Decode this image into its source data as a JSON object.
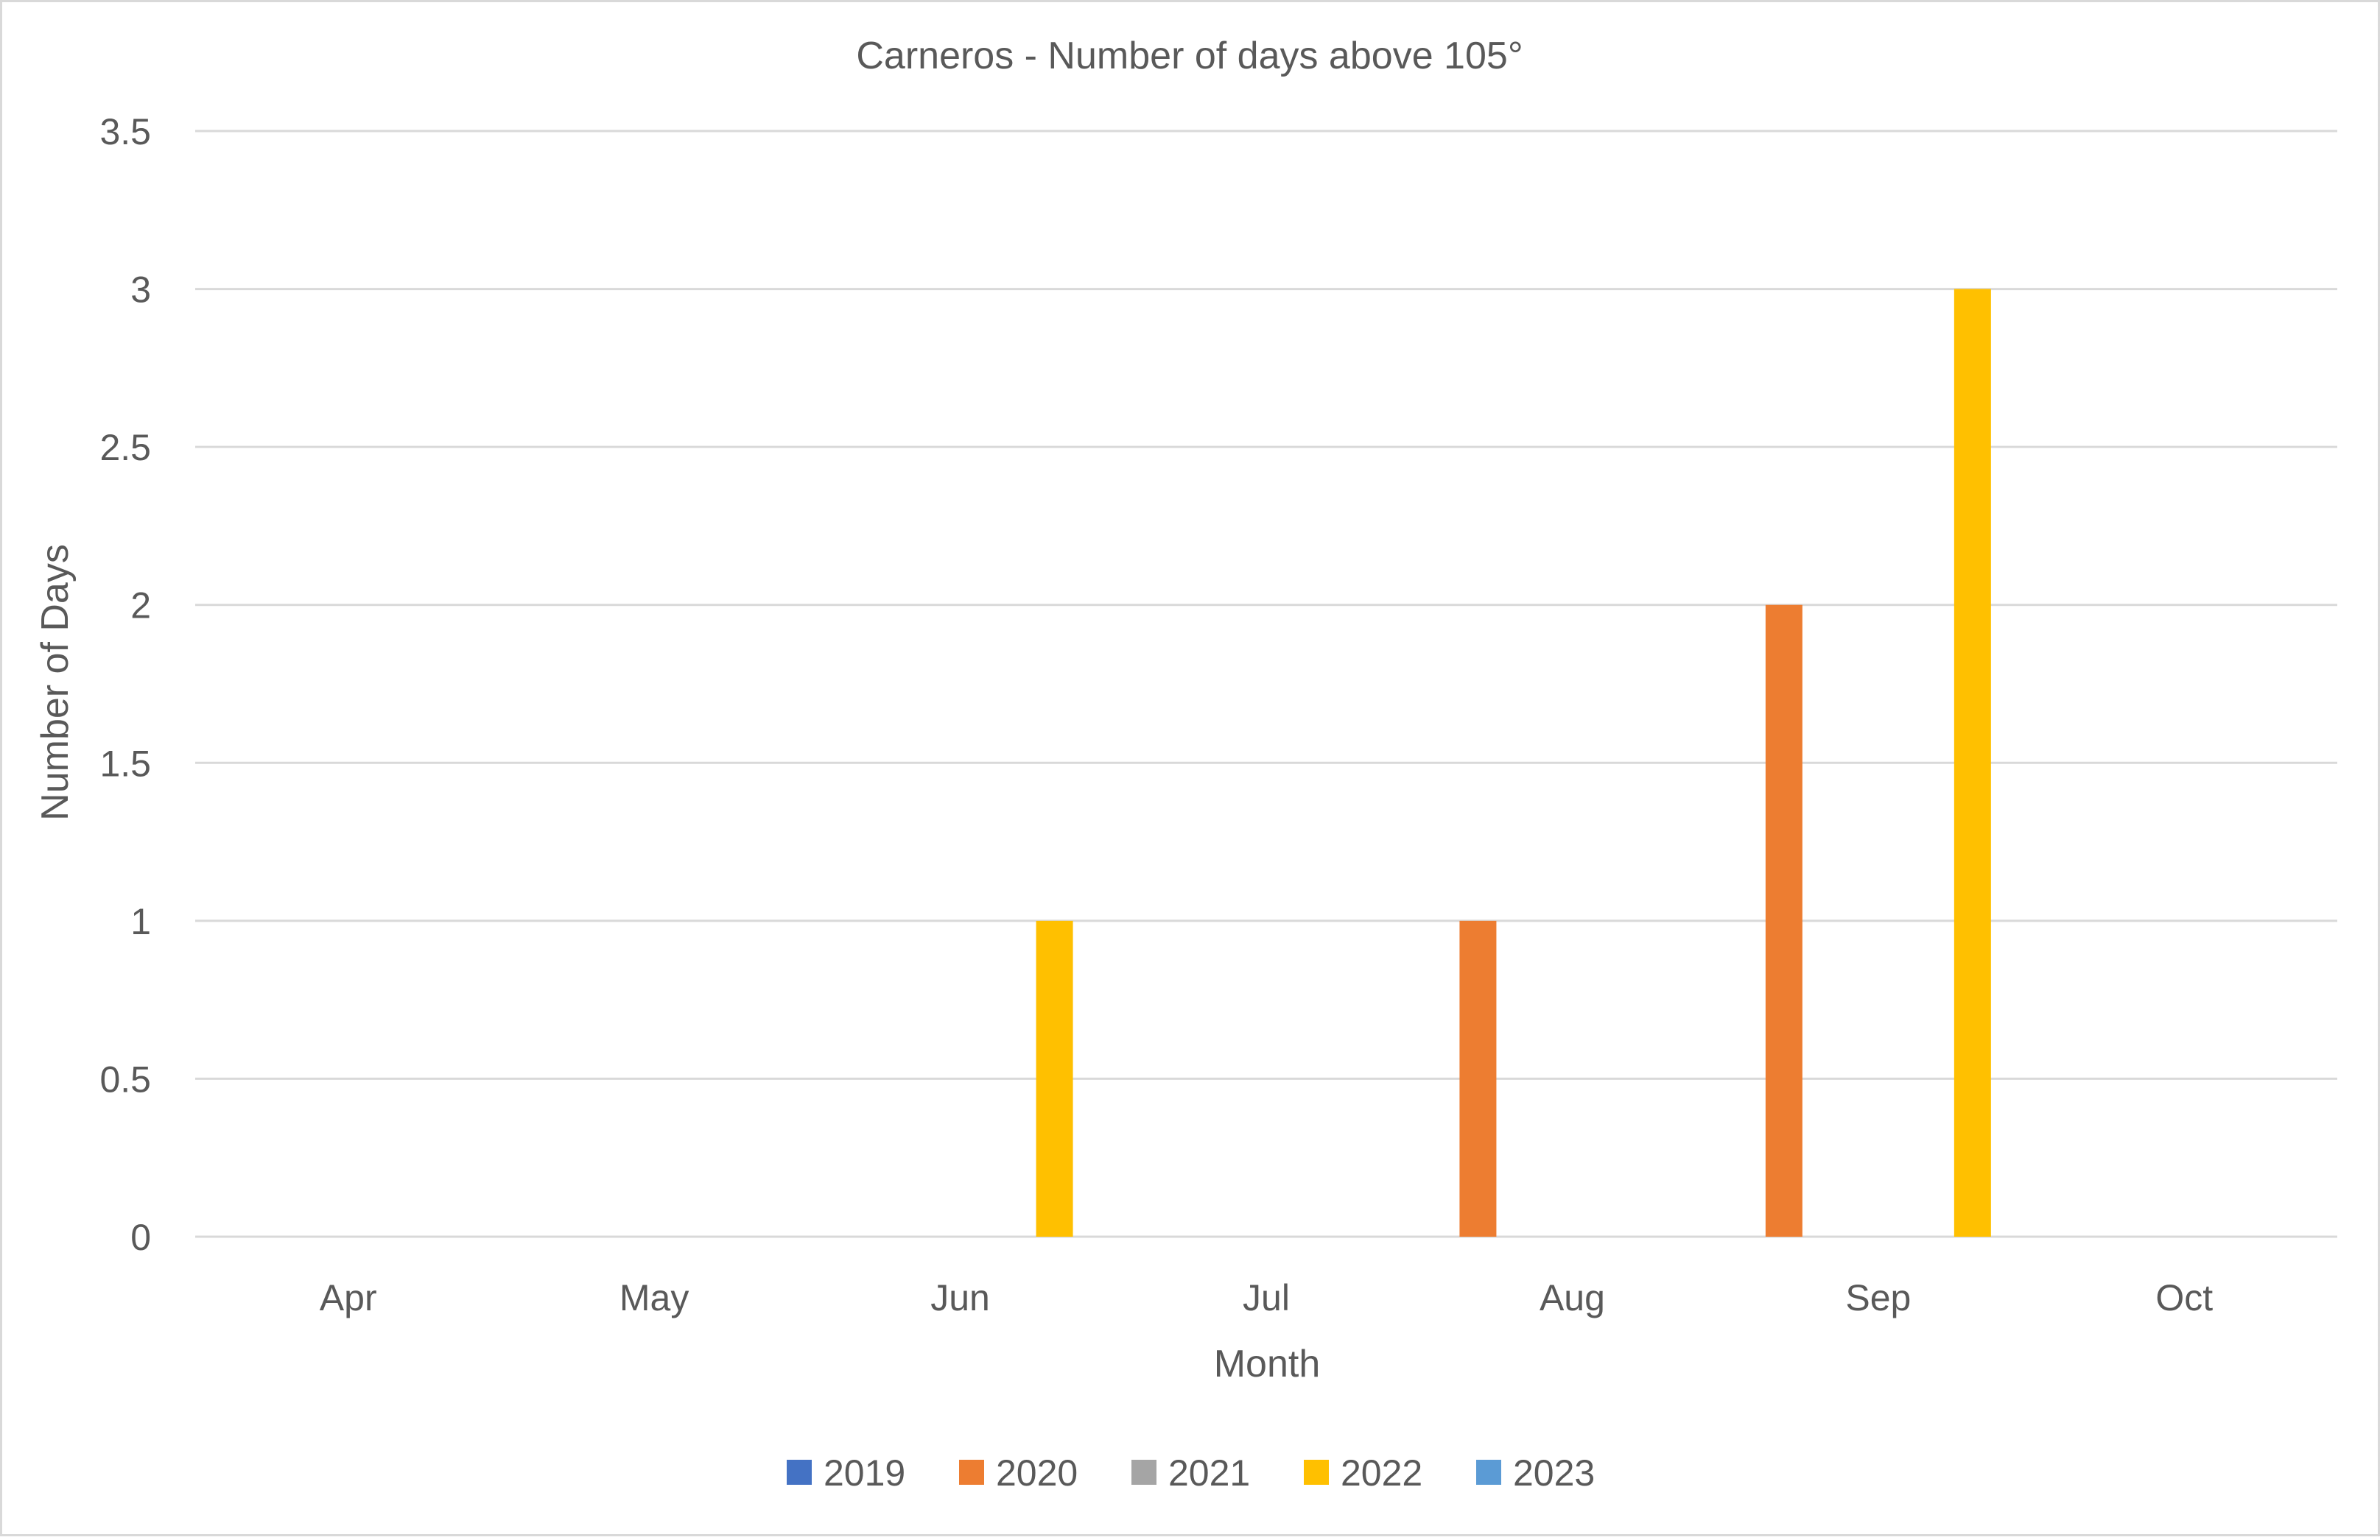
{
  "chart_data": {
    "type": "bar",
    "title": "Carneros - Number of days above 105°",
    "xlabel": "Month",
    "ylabel": "Number of Days",
    "categories": [
      "Apr",
      "May",
      "Jun",
      "Jul",
      "Aug",
      "Sep",
      "Oct"
    ],
    "ylim": [
      0,
      3.5
    ],
    "yticks": [
      "0",
      "0.5",
      "1",
      "1.5",
      "2",
      "2.5",
      "3",
      "3.5"
    ],
    "grid": true,
    "legend_position": "bottom",
    "series": [
      {
        "name": "2019",
        "color": "#4472C4",
        "values": [
          0,
          0,
          0,
          0,
          0,
          0,
          0
        ]
      },
      {
        "name": "2020",
        "color": "#ED7D31",
        "values": [
          0,
          0,
          0,
          0,
          1,
          2,
          0
        ]
      },
      {
        "name": "2021",
        "color": "#A5A5A5",
        "values": [
          0,
          0,
          0,
          0,
          0,
          0,
          0
        ]
      },
      {
        "name": "2022",
        "color": "#FFC000",
        "values": [
          0,
          0,
          1,
          0,
          0,
          3,
          0
        ]
      },
      {
        "name": "2023",
        "color": "#5B9BD5",
        "values": [
          0,
          0,
          0,
          0,
          0,
          0,
          0
        ]
      }
    ]
  }
}
